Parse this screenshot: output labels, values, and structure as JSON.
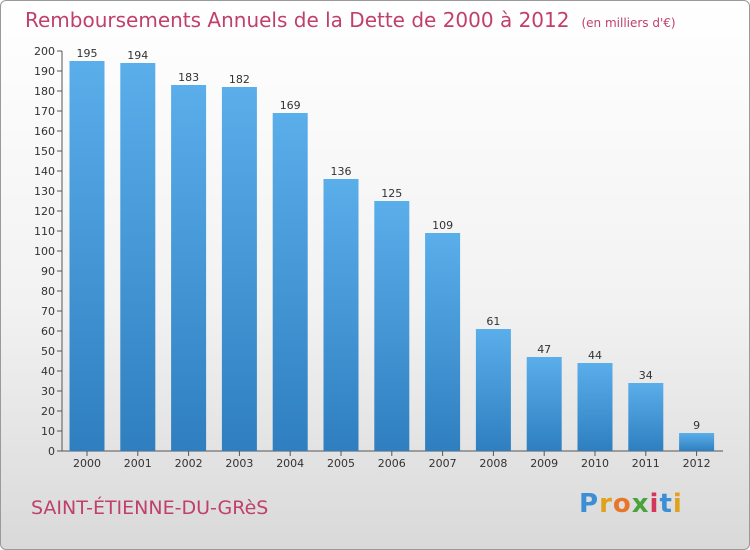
{
  "header": {
    "title": "Remboursements Annuels de la Dette de 2000 à 2012",
    "subtitle": "(en milliers d'€)"
  },
  "footer": {
    "city": "SAINT-ÉTIENNE-DU-GRèS",
    "brand_letters": [
      "P",
      "r",
      "o",
      "x",
      "i",
      "t",
      "i"
    ],
    "brand_colors": [
      "#3a8fd6",
      "#e0a21a",
      "#e8762a",
      "#4aa33a",
      "#d4355a",
      "#3a8fd6",
      "#e0a21a"
    ]
  },
  "chart_data": {
    "type": "bar",
    "categories": [
      "2000",
      "2001",
      "2002",
      "2003",
      "2004",
      "2005",
      "2006",
      "2007",
      "2008",
      "2009",
      "2010",
      "2011",
      "2012"
    ],
    "values": [
      195,
      194,
      183,
      182,
      169,
      136,
      125,
      109,
      61,
      47,
      44,
      34,
      9
    ],
    "ylim": [
      0,
      200
    ],
    "ytick_step": 10,
    "grid": false,
    "bar_color_top": "#5aaeea",
    "bar_color_bottom": "#2f7fc0"
  }
}
